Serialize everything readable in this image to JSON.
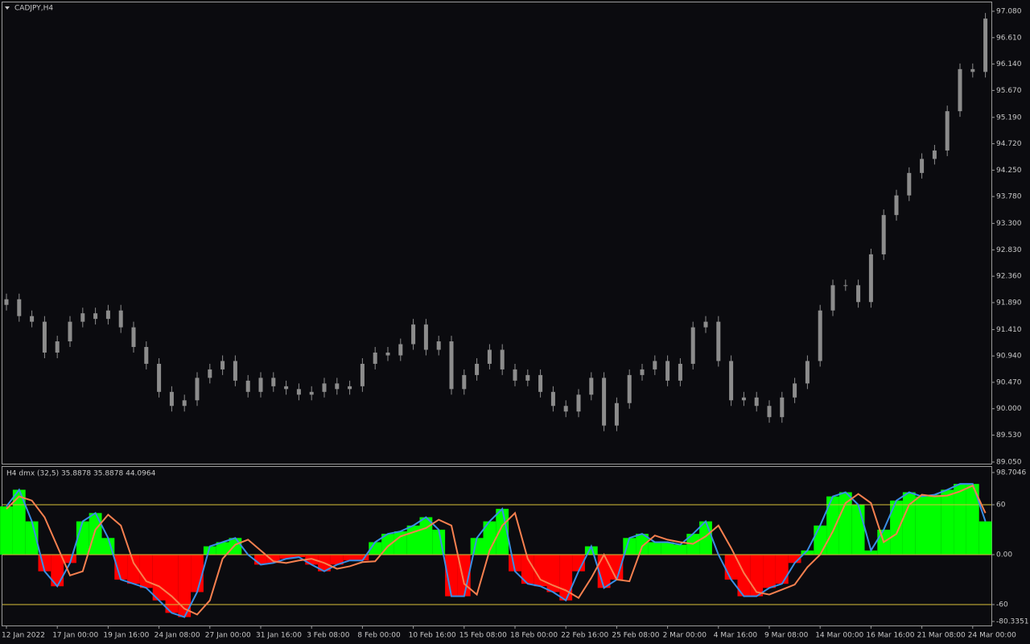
{
  "chart_data": [
    {
      "type": "candlestick",
      "title": "CADJPY,H4",
      "color": "#8c8c8c",
      "open": [
        91.85,
        91.95,
        91.65,
        91.55,
        91.0,
        91.2,
        91.55,
        91.7,
        91.6,
        91.75,
        91.45,
        91.1,
        90.8,
        90.3,
        90.05,
        90.15,
        90.55,
        90.7,
        90.85,
        90.5,
        90.3,
        90.55,
        90.4,
        90.35,
        90.25,
        90.3,
        90.45,
        90.35,
        90.4,
        90.8,
        91.0,
        90.95,
        91.15,
        91.5,
        91.05,
        91.2,
        90.35,
        90.6,
        90.8,
        91.05,
        90.7,
        90.5,
        90.6,
        90.3,
        90.05,
        89.95,
        90.25,
        90.55,
        89.7,
        90.1,
        90.6,
        90.7,
        90.85,
        90.5,
        90.8,
        91.45,
        91.55,
        90.85,
        90.15,
        90.2,
        90.05,
        89.85,
        90.2,
        90.45,
        90.85,
        91.75,
        92.2,
        92.2,
        91.9,
        92.75,
        93.45,
        93.8,
        94.2,
        94.45,
        94.6,
        95.3,
        96.05,
        96.0
      ],
      "high": [
        92.05,
        92.05,
        91.75,
        91.65,
        91.3,
        91.65,
        91.8,
        91.8,
        91.85,
        91.85,
        91.55,
        91.2,
        90.9,
        90.4,
        90.25,
        90.65,
        90.8,
        90.95,
        90.95,
        90.6,
        90.65,
        90.65,
        90.5,
        90.45,
        90.4,
        90.55,
        90.55,
        90.5,
        90.9,
        91.1,
        91.1,
        91.25,
        91.6,
        91.6,
        91.3,
        91.3,
        90.7,
        90.9,
        91.15,
        91.15,
        90.8,
        90.7,
        90.7,
        90.4,
        90.15,
        90.35,
        90.65,
        90.65,
        90.2,
        90.7,
        90.8,
        90.95,
        90.95,
        90.9,
        91.55,
        91.65,
        91.65,
        90.95,
        90.3,
        90.3,
        90.15,
        90.3,
        90.55,
        90.95,
        91.85,
        92.3,
        92.3,
        92.3,
        92.85,
        93.55,
        93.9,
        94.3,
        94.55,
        94.7,
        95.4,
        96.15,
        96.15,
        97.05
      ],
      "low": [
        91.75,
        91.55,
        91.45,
        90.9,
        90.9,
        91.1,
        91.45,
        91.5,
        91.5,
        91.35,
        91.0,
        90.7,
        90.2,
        89.95,
        89.95,
        90.05,
        90.45,
        90.6,
        90.4,
        90.2,
        90.2,
        90.3,
        90.25,
        90.15,
        90.15,
        90.2,
        90.25,
        90.25,
        90.3,
        90.7,
        90.85,
        90.85,
        91.05,
        90.95,
        90.95,
        90.25,
        90.25,
        90.5,
        90.7,
        90.6,
        90.4,
        90.4,
        90.2,
        89.95,
        89.85,
        89.85,
        90.15,
        89.6,
        89.6,
        90.0,
        90.5,
        90.6,
        90.4,
        90.4,
        90.7,
        91.35,
        90.75,
        90.05,
        90.05,
        89.95,
        89.75,
        89.75,
        90.1,
        90.35,
        90.75,
        91.65,
        92.1,
        91.8,
        91.8,
        92.65,
        93.35,
        93.7,
        94.1,
        94.35,
        94.5,
        95.2,
        95.9,
        95.9
      ],
      "close": [
        91.95,
        91.65,
        91.55,
        91.0,
        91.2,
        91.55,
        91.7,
        91.6,
        91.75,
        91.45,
        91.1,
        90.8,
        90.3,
        90.05,
        90.15,
        90.55,
        90.7,
        90.85,
        90.5,
        90.3,
        90.55,
        90.4,
        90.35,
        90.25,
        90.3,
        90.45,
        90.35,
        90.4,
        90.8,
        91.0,
        90.95,
        91.15,
        91.5,
        91.05,
        91.2,
        90.35,
        90.6,
        90.8,
        91.05,
        90.7,
        90.5,
        90.6,
        90.3,
        90.05,
        89.95,
        90.25,
        90.55,
        89.7,
        90.1,
        90.6,
        90.7,
        90.85,
        90.5,
        90.8,
        91.45,
        91.55,
        90.85,
        90.15,
        90.2,
        90.05,
        89.85,
        90.2,
        90.45,
        90.85,
        91.75,
        92.2,
        92.2,
        91.9,
        92.75,
        93.45,
        93.8,
        94.2,
        94.45,
        94.6,
        95.3,
        96.05,
        96.0,
        96.95
      ],
      "ylim": [
        89.021,
        97.238
      ],
      "yticks": [
        {
          "value": 97.08,
          "label": "97.080"
        },
        {
          "value": 96.61,
          "label": "96.610"
        },
        {
          "value": 96.14,
          "label": "96.140"
        },
        {
          "value": 95.67,
          "label": "95.670"
        },
        {
          "value": 95.19,
          "label": "95.190"
        },
        {
          "value": 94.72,
          "label": "94.720"
        },
        {
          "value": 94.25,
          "label": "94.250"
        },
        {
          "value": 93.78,
          "label": "93.780"
        },
        {
          "value": 93.3,
          "label": "93.300"
        },
        {
          "value": 92.83,
          "label": "92.830"
        },
        {
          "value": 92.36,
          "label": "92.360"
        },
        {
          "value": 91.89,
          "label": "91.890"
        },
        {
          "value": 91.41,
          "label": "91.410"
        },
        {
          "value": 90.94,
          "label": "90.940"
        },
        {
          "value": 90.47,
          "label": "90.470"
        },
        {
          "value": 90,
          "label": "90.000"
        },
        {
          "value": 89.53,
          "label": "89.530"
        },
        {
          "value": 89.05,
          "label": "89.050"
        }
      ]
    },
    {
      "type": "line",
      "title": "H4 dmx (32,5) 35.8878 35.8878 44.0964",
      "categories": [
        "12 Jan 2022",
        null,
        null,
        null,
        "17 Jan 00:00",
        null,
        null,
        null,
        "19 Jan 16:00",
        null,
        null,
        null,
        "24 Jan 08:00",
        null,
        null,
        null,
        "27 Jan 00:00",
        null,
        null,
        null,
        "31 Jan 16:00",
        null,
        null,
        null,
        "3 Feb 08:00",
        null,
        null,
        null,
        "8 Feb 00:00",
        null,
        null,
        null,
        "10 Feb 16:00",
        null,
        null,
        null,
        "15 Feb 08:00",
        null,
        null,
        null,
        "18 Feb 00:00",
        null,
        null,
        null,
        "22 Feb 16:00",
        null,
        null,
        null,
        "25 Feb 08:00",
        null,
        null,
        null,
        "2 Mar 00:00",
        null,
        null,
        null,
        "4 Mar 16:00",
        null,
        null,
        null,
        "9 Mar 08:00",
        null,
        null,
        null,
        "14 Mar 00:00",
        null,
        null,
        null,
        "16 Mar 16:00",
        null,
        null,
        null,
        "21 Mar 08:00",
        null,
        null,
        null,
        "24 Mar 00:00",
        null
      ],
      "series": [
        {
          "color": "#3a8ee6",
          "values": [
            58,
            78,
            40,
            -20,
            -38,
            -10,
            40,
            50,
            20,
            -30,
            -35,
            -40,
            -55,
            -70,
            -75,
            -45,
            10,
            15,
            20,
            0,
            -12,
            -10,
            -5,
            -3,
            -12,
            -20,
            -12,
            -7,
            -7,
            15,
            25,
            28,
            35,
            45,
            30,
            -50,
            -50,
            20,
            40,
            55,
            -20,
            -35,
            -38,
            -45,
            -55,
            -20,
            10,
            -40,
            -30,
            20,
            25,
            15,
            15,
            12,
            25,
            40,
            0,
            -30,
            -50,
            -50,
            -40,
            -35,
            -10,
            5,
            35,
            70,
            75,
            60,
            5,
            30,
            65,
            75,
            70,
            72,
            78,
            85,
            85,
            40
          ]
        },
        {
          "color": "#f7804f",
          "values": [
            55,
            70,
            65,
            45,
            10,
            -25,
            -20,
            30,
            48,
            35,
            -10,
            -32,
            -38,
            -50,
            -65,
            -72,
            -55,
            -5,
            12,
            18,
            5,
            -8,
            -10,
            -7,
            -5,
            -10,
            -17,
            -14,
            -9,
            -8,
            10,
            22,
            27,
            32,
            42,
            35,
            -35,
            -48,
            5,
            35,
            50,
            -5,
            -30,
            -37,
            -43,
            -52,
            -28,
            0,
            -30,
            -32,
            10,
            23,
            18,
            15,
            13,
            22,
            35,
            8,
            -22,
            -45,
            -48,
            -42,
            -36,
            -15,
            0,
            28,
            62,
            73,
            62,
            15,
            25,
            60,
            72,
            70,
            71,
            76,
            83,
            50
          ]
        }
      ],
      "histogram": true,
      "positive_color": "#00ff00",
      "negative_color": "#ff0000",
      "levels": [
        60,
        0,
        -60
      ],
      "level_color": "#d8c23a",
      "ylim": [
        -85.17,
        105.48
      ],
      "yticks": [
        98.7046,
        60,
        {
          "value": 0,
          "label": "0.00"
        },
        -60,
        -80.3351
      ]
    }
  ]
}
